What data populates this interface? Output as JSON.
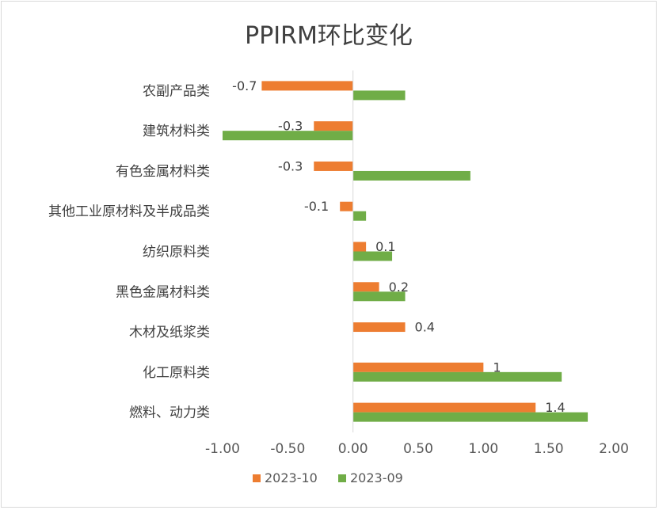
{
  "chart_data": {
    "type": "bar",
    "orientation": "horizontal",
    "title": "PPIRM环比变化",
    "categories": [
      "农副产品类",
      "建筑材料类",
      "有色金属材料类",
      "其他工业原材料及半成品类",
      "纺织原料类",
      "黑色金属材料类",
      "木材及纸浆类",
      "化工原料类",
      "燃料、动力类"
    ],
    "series": [
      {
        "name": "2023-10",
        "color": "#ed7d31",
        "values": [
          -0.7,
          -0.3,
          -0.3,
          -0.1,
          0.1,
          0.2,
          0.4,
          1,
          1.4
        ],
        "labels": [
          "-0.7",
          "-0.3",
          "-0.3",
          "-0.1",
          "0.1",
          "0.2",
          "0.4",
          "1",
          "1.4"
        ]
      },
      {
        "name": "2023-09",
        "color": "#70ad47",
        "values": [
          0.4,
          -1.0,
          0.9,
          0.1,
          0.3,
          0.4,
          0,
          1.6,
          1.8
        ]
      }
    ],
    "xlim": [
      -1.0,
      2.0
    ],
    "xticks": [
      "-1.00",
      "-0.50",
      "0.00",
      "0.50",
      "1.00",
      "1.50",
      "2.00"
    ],
    "xtick_values": [
      -1.0,
      -0.5,
      0.0,
      0.5,
      1.0,
      1.5,
      2.0
    ],
    "grid": false,
    "legend_position": "bottom"
  }
}
